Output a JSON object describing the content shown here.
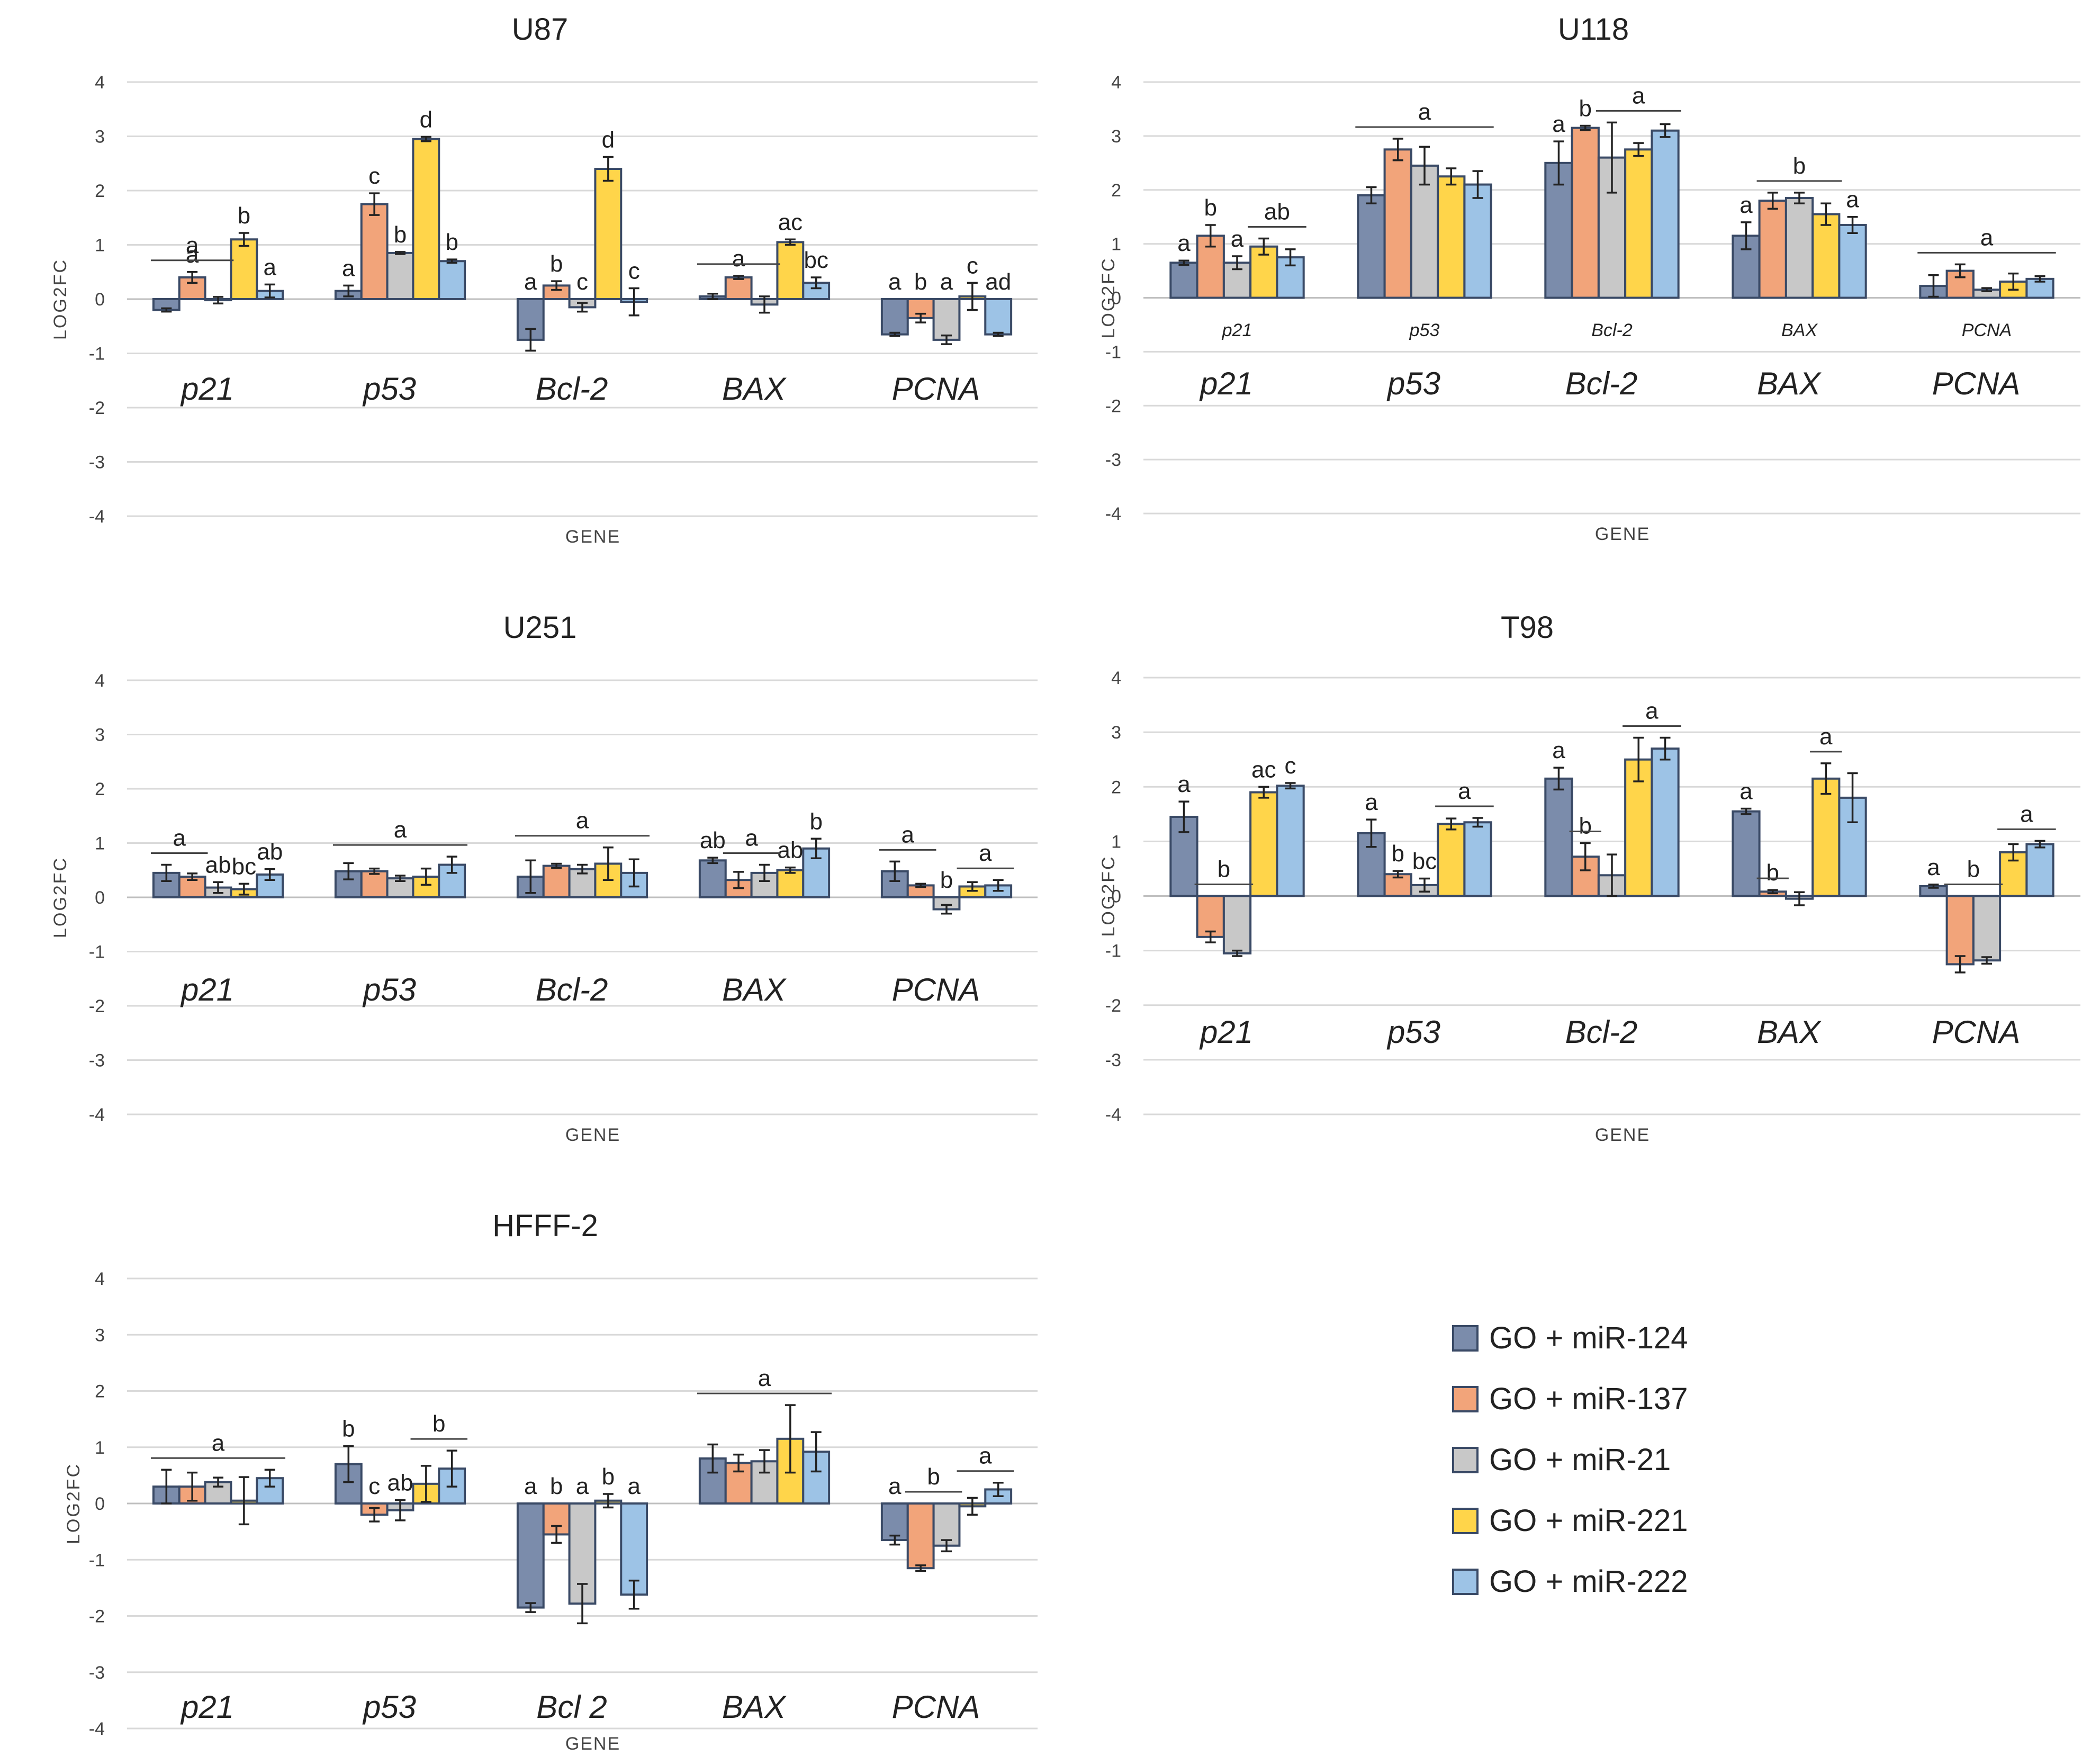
{
  "legend": [
    {
      "label": "GO + miR-124",
      "color": "#7b8cab"
    },
    {
      "label": "GO + miR-137",
      "color": "#f2a47a"
    },
    {
      "label": "GO + miR-21",
      "color": "#c8c8c8"
    },
    {
      "label": "GO + miR-221",
      "color": "#ffd54a"
    },
    {
      "label": "GO + miR-222",
      "color": "#9dc3e6"
    }
  ],
  "chart_data": [
    {
      "type": "bar",
      "title": "U87",
      "xlabel": "GENE",
      "ylabel": "LOG2FC",
      "ylim": [
        -4,
        4
      ],
      "yticks": [
        4,
        3,
        2,
        1,
        0,
        -1,
        -2,
        -3,
        -4
      ],
      "gene_label_style": "large",
      "categories": [
        "p21",
        "p53",
        "Bcl-2",
        "BAX",
        "PCNA"
      ],
      "series": [
        {
          "name": "GO + miR-124",
          "values": [
            -0.2,
            0.15,
            -0.75,
            0.05,
            -0.65
          ],
          "errors": [
            0.03,
            0.1,
            0.2,
            0.05,
            0.03
          ]
        },
        {
          "name": "GO + miR-137",
          "values": [
            0.4,
            1.75,
            0.25,
            0.4,
            -0.35
          ],
          "errors": [
            0.1,
            0.2,
            0.08,
            0.03,
            0.08
          ]
        },
        {
          "name": "GO + miR-21",
          "values": [
            -0.02,
            0.85,
            -0.15,
            -0.1,
            -0.75
          ],
          "errors": [
            0.06,
            0.02,
            0.08,
            0.15,
            0.08
          ]
        },
        {
          "name": "GO + miR-221",
          "values": [
            1.1,
            2.95,
            2.4,
            1.05,
            0.05
          ],
          "errors": [
            0.12,
            0.04,
            0.22,
            0.05,
            0.25
          ]
        },
        {
          "name": "GO + miR-222",
          "values": [
            0.15,
            0.7,
            -0.05,
            0.3,
            -0.65
          ],
          "errors": [
            0.12,
            0.03,
            0.25,
            0.1,
            0.03
          ]
        }
      ],
      "sig_letters": [
        [
          "",
          "a",
          "",
          "b",
          "a"
        ],
        [
          "a",
          "c",
          "b",
          "d",
          "b"
        ],
        [
          "a",
          "b",
          "c",
          "d",
          "c"
        ],
        [
          "",
          "a",
          "",
          "ac",
          "bc"
        ],
        [
          "a",
          "b",
          "a",
          "c",
          "ad"
        ]
      ],
      "sig_groups": [
        [
          {
            "from": 0,
            "to": 2,
            "label": "a"
          }
        ],
        [],
        [],
        [
          {
            "from": 0,
            "to": 2,
            "label": ""
          }
        ],
        []
      ]
    },
    {
      "type": "bar",
      "title": "U118",
      "xlabel": "GENE",
      "ylabel": "LOG2FC",
      "ylim": [
        -4,
        4
      ],
      "yticks": [
        4,
        3,
        2,
        1,
        0,
        -1,
        -2,
        -3,
        -4
      ],
      "gene_label_style": "both",
      "categories": [
        "p21",
        "p53",
        "Bcl-2",
        "BAX",
        "PCNA"
      ],
      "series": [
        {
          "name": "GO + miR-124",
          "values": [
            0.65,
            1.9,
            2.5,
            1.15,
            0.22
          ],
          "errors": [
            0.04,
            0.15,
            0.4,
            0.25,
            0.2
          ]
        },
        {
          "name": "GO + miR-137",
          "values": [
            1.15,
            2.75,
            3.15,
            1.8,
            0.5
          ],
          "errors": [
            0.2,
            0.2,
            0.04,
            0.15,
            0.12
          ]
        },
        {
          "name": "GO + miR-21",
          "values": [
            0.65,
            2.45,
            2.6,
            1.85,
            0.15
          ],
          "errors": [
            0.12,
            0.35,
            0.65,
            0.1,
            0.03
          ]
        },
        {
          "name": "GO + miR-221",
          "values": [
            0.95,
            2.25,
            2.75,
            1.55,
            0.3
          ],
          "errors": [
            0.15,
            0.15,
            0.12,
            0.2,
            0.15
          ]
        },
        {
          "name": "GO + miR-222",
          "values": [
            0.75,
            2.1,
            3.1,
            1.35,
            0.35
          ],
          "errors": [
            0.15,
            0.25,
            0.12,
            0.15,
            0.05
          ]
        }
      ],
      "sig_letters": [
        [
          "a",
          "b",
          "a",
          "",
          ""
        ],
        [
          "",
          "",
          "",
          "",
          ""
        ],
        [
          "a",
          "b",
          "",
          "",
          ""
        ],
        [
          "a",
          "",
          "",
          "",
          "a"
        ],
        [
          "",
          "",
          "",
          "",
          ""
        ]
      ],
      "sig_groups": [
        [
          {
            "from": 3,
            "to": 4,
            "label": "ab"
          }
        ],
        [
          {
            "from": 0,
            "to": 4,
            "label": "a"
          }
        ],
        [
          {
            "from": 2,
            "to": 4,
            "label": "a"
          }
        ],
        [
          {
            "from": 1,
            "to": 3,
            "label": "b"
          }
        ],
        [
          {
            "from": 0,
            "to": 4,
            "label": "a"
          }
        ]
      ]
    },
    {
      "type": "bar",
      "title": "U251",
      "xlabel": "GENE",
      "ylabel": "LOG2FC",
      "ylim": [
        -4,
        4
      ],
      "yticks": [
        4,
        3,
        2,
        1,
        0,
        -1,
        -2,
        -3,
        -4
      ],
      "gene_label_style": "large",
      "categories": [
        "p21",
        "p53",
        "Bcl-2",
        "BAX",
        "PCNA"
      ],
      "series": [
        {
          "name": "GO + miR-124",
          "values": [
            0.45,
            0.48,
            0.38,
            0.68,
            0.48
          ],
          "errors": [
            0.15,
            0.15,
            0.3,
            0.05,
            0.18
          ]
        },
        {
          "name": "GO + miR-137",
          "values": [
            0.38,
            0.48,
            0.58,
            0.32,
            0.22
          ],
          "errors": [
            0.06,
            0.05,
            0.04,
            0.15,
            0.03
          ]
        },
        {
          "name": "GO + miR-21",
          "values": [
            0.18,
            0.35,
            0.52,
            0.45,
            -0.22
          ],
          "errors": [
            0.1,
            0.05,
            0.08,
            0.15,
            0.08
          ]
        },
        {
          "name": "GO + miR-221",
          "values": [
            0.15,
            0.38,
            0.62,
            0.5,
            0.2
          ],
          "errors": [
            0.1,
            0.15,
            0.3,
            0.05,
            0.08
          ]
        },
        {
          "name": "GO + miR-222",
          "values": [
            0.42,
            0.6,
            0.45,
            0.9,
            0.22
          ],
          "errors": [
            0.1,
            0.15,
            0.25,
            0.18,
            0.1
          ]
        }
      ],
      "sig_letters": [
        [
          "",
          "",
          "ab",
          "bc",
          "ab"
        ],
        [
          "",
          "",
          "",
          "",
          ""
        ],
        [
          "",
          "",
          "",
          "",
          ""
        ],
        [
          "ab",
          "",
          "",
          "ab",
          "b"
        ],
        [
          "",
          "",
          "b",
          "",
          ""
        ]
      ],
      "sig_groups": [
        [
          {
            "from": 0,
            "to": 1,
            "label": "a"
          }
        ],
        [
          {
            "from": 0,
            "to": 4,
            "label": "a"
          }
        ],
        [
          {
            "from": 0,
            "to": 4,
            "label": "a"
          }
        ],
        [
          {
            "from": 1,
            "to": 2,
            "label": "a"
          }
        ],
        [
          {
            "from": 0,
            "to": 1,
            "label": "a"
          },
          {
            "from": 3,
            "to": 4,
            "label": "a"
          }
        ]
      ]
    },
    {
      "type": "bar",
      "title": "T98",
      "xlabel": "GENE",
      "ylabel": "LOG2FC",
      "ylim": [
        -4,
        4
      ],
      "yticks": [
        4,
        3,
        2,
        1,
        0,
        -1,
        -2,
        -3,
        -4
      ],
      "gene_label_style": "large",
      "categories": [
        "p21",
        "p53",
        "Bcl-2",
        "BAX",
        "PCNA"
      ],
      "series": [
        {
          "name": "GO + miR-124",
          "values": [
            1.45,
            1.15,
            2.15,
            1.55,
            0.18
          ],
          "errors": [
            0.28,
            0.25,
            0.2,
            0.05,
            0.03
          ]
        },
        {
          "name": "GO + miR-137",
          "values": [
            -0.75,
            0.4,
            0.72,
            0.08,
            -1.25
          ],
          "errors": [
            0.1,
            0.06,
            0.25,
            0.03,
            0.15
          ]
        },
        {
          "name": "GO + miR-21",
          "values": [
            -1.05,
            0.2,
            0.38,
            -0.05,
            -1.18
          ],
          "errors": [
            0.05,
            0.12,
            0.38,
            0.12,
            0.06
          ]
        },
        {
          "name": "GO + miR-221",
          "values": [
            1.9,
            1.32,
            2.5,
            2.15,
            0.8
          ],
          "errors": [
            0.1,
            0.1,
            0.4,
            0.28,
            0.15
          ]
        },
        {
          "name": "GO + miR-222",
          "values": [
            2.02,
            1.35,
            2.7,
            1.8,
            0.95
          ],
          "errors": [
            0.05,
            0.08,
            0.2,
            0.45,
            0.06
          ]
        }
      ],
      "sig_letters": [
        [
          "a",
          "",
          "",
          "ac",
          "c"
        ],
        [
          "a",
          "b",
          "bc",
          "",
          ""
        ],
        [
          "a",
          "b",
          "",
          "",
          ""
        ],
        [
          "a",
          "b",
          "",
          "",
          ""
        ],
        [
          "a",
          "",
          "",
          "",
          ""
        ]
      ],
      "sig_groups": [
        [
          {
            "from": 1,
            "to": 2,
            "label": "b"
          }
        ],
        [
          {
            "from": 3,
            "to": 4,
            "label": "a"
          }
        ],
        [
          {
            "from": 1,
            "to": 1,
            "label": ""
          },
          {
            "from": 3,
            "to": 4,
            "label": "a"
          }
        ],
        [
          {
            "from": 1,
            "to": 1,
            "label": ""
          },
          {
            "from": 3,
            "to": 3,
            "label": "a"
          }
        ],
        [
          {
            "from": 1,
            "to": 2,
            "label": "b"
          },
          {
            "from": 3,
            "to": 4,
            "label": "a"
          }
        ]
      ]
    },
    {
      "type": "bar",
      "title": "HFFF-2",
      "xlabel": "GENE",
      "ylabel": "LOG2FC",
      "ylim": [
        -4,
        4
      ],
      "yticks": [
        4,
        3,
        2,
        1,
        0,
        -1,
        -2,
        -3,
        -4
      ],
      "gene_label_style": "large",
      "categories": [
        "p21",
        "p53",
        "Bcl 2",
        "BAX",
        "PCNA"
      ],
      "series": [
        {
          "name": "GO + miR-124",
          "values": [
            0.3,
            0.7,
            -1.85,
            0.8,
            -0.65
          ],
          "errors": [
            0.3,
            0.32,
            0.08,
            0.25,
            0.08
          ]
        },
        {
          "name": "GO + miR-137",
          "values": [
            0.3,
            -0.2,
            -0.55,
            0.72,
            -1.15
          ],
          "errors": [
            0.25,
            0.12,
            0.15,
            0.15,
            0.05
          ]
        },
        {
          "name": "GO + miR-21",
          "values": [
            0.38,
            -0.12,
            -1.78,
            0.75,
            -0.75
          ],
          "errors": [
            0.08,
            0.18,
            0.35,
            0.2,
            0.1
          ]
        },
        {
          "name": "GO + miR-221",
          "values": [
            0.05,
            0.35,
            0.05,
            1.15,
            -0.05
          ],
          "errors": [
            0.42,
            0.32,
            0.12,
            0.6,
            0.15
          ]
        },
        {
          "name": "GO + miR-222",
          "values": [
            0.45,
            0.62,
            -1.62,
            0.92,
            0.25
          ],
          "errors": [
            0.15,
            0.32,
            0.25,
            0.35,
            0.12
          ]
        }
      ],
      "sig_letters": [
        [
          "",
          "",
          "",
          "",
          ""
        ],
        [
          "b",
          "c",
          "ab",
          "",
          ""
        ],
        [
          "a",
          "b",
          "a",
          "b",
          "a"
        ],
        [
          "",
          "",
          "",
          "",
          ""
        ],
        [
          "a",
          "",
          "",
          "",
          ""
        ]
      ],
      "sig_groups": [
        [
          {
            "from": 0,
            "to": 4,
            "label": "a"
          }
        ],
        [
          {
            "from": 3,
            "to": 4,
            "label": "b"
          }
        ],
        [],
        [
          {
            "from": 0,
            "to": 4,
            "label": "a"
          }
        ],
        [
          {
            "from": 1,
            "to": 2,
            "label": "b"
          },
          {
            "from": 3,
            "to": 4,
            "label": "a"
          }
        ]
      ]
    }
  ]
}
